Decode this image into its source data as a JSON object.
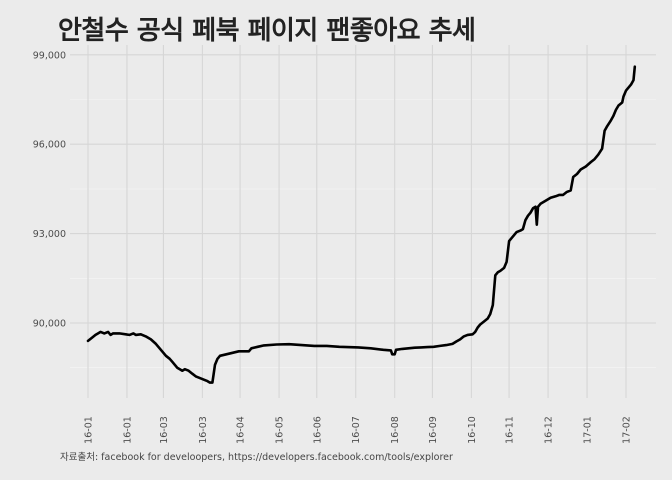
{
  "title": "안철수 공식 페북 페이지 팬좋아요 추세",
  "caption": "자료출처: facebook for develoopers, https://developers.facebook.com/tools/explorer",
  "chart_data": {
    "type": "line",
    "title": "안철수 공식 페북 페이지 팬좋아요 추세",
    "xlabel": "",
    "ylabel": "",
    "grid": true,
    "ylim": [
      87450,
      99450
    ],
    "yticks": [
      90000,
      93000,
      96000,
      99000
    ],
    "ytick_labels": [
      "90,000",
      "93,000",
      "96,000",
      "99,000"
    ],
    "x_range_days": [
      0,
      415
    ],
    "xticks": [
      {
        "label": "16-01",
        "day": 0
      },
      {
        "label": "16-01",
        "day": 31
      },
      {
        "label": "16-03",
        "day": 60
      },
      {
        "label": "16-03",
        "day": 91
      },
      {
        "label": "16-04",
        "day": 121
      },
      {
        "label": "16-05",
        "day": 152
      },
      {
        "label": "16-06",
        "day": 182
      },
      {
        "label": "16-07",
        "day": 213
      },
      {
        "label": "16-08",
        "day": 244
      },
      {
        "label": "16-09",
        "day": 274
      },
      {
        "label": "16-10",
        "day": 305
      },
      {
        "label": "16-11",
        "day": 335
      },
      {
        "label": "16-12",
        "day": 366
      },
      {
        "label": "17-01",
        "day": 397
      },
      {
        "label": "17-02",
        "day": 428
      }
    ],
    "series": [
      {
        "color": "#000000",
        "points": [
          [
            0,
            89400
          ],
          [
            3,
            89500
          ],
          [
            6,
            89600
          ],
          [
            8,
            89650
          ],
          [
            10,
            89700
          ],
          [
            13,
            89650
          ],
          [
            16,
            89700
          ],
          [
            18,
            89600
          ],
          [
            20,
            89650
          ],
          [
            25,
            89650
          ],
          [
            30,
            89620
          ],
          [
            33,
            89600
          ],
          [
            36,
            89650
          ],
          [
            38,
            89600
          ],
          [
            42,
            89620
          ],
          [
            46,
            89550
          ],
          [
            50,
            89450
          ],
          [
            54,
            89300
          ],
          [
            57,
            89150
          ],
          [
            60,
            89000
          ],
          [
            62,
            88900
          ],
          [
            65,
            88800
          ],
          [
            67,
            88700
          ],
          [
            69,
            88600
          ],
          [
            71,
            88500
          ],
          [
            73,
            88450
          ],
          [
            75,
            88400
          ],
          [
            77,
            88450
          ],
          [
            80,
            88400
          ],
          [
            83,
            88300
          ],
          [
            86,
            88200
          ],
          [
            89,
            88150
          ],
          [
            92,
            88100
          ],
          [
            95,
            88050
          ],
          [
            97,
            88000
          ],
          [
            99,
            88000
          ],
          [
            100,
            88300
          ],
          [
            101,
            88600
          ],
          [
            103,
            88800
          ],
          [
            105,
            88900
          ],
          [
            110,
            88950
          ],
          [
            115,
            89000
          ],
          [
            120,
            89050
          ],
          [
            128,
            89050
          ],
          [
            130,
            89150
          ],
          [
            135,
            89200
          ],
          [
            140,
            89250
          ],
          [
            150,
            89280
          ],
          [
            160,
            89290
          ],
          [
            170,
            89260
          ],
          [
            180,
            89230
          ],
          [
            190,
            89230
          ],
          [
            200,
            89200
          ],
          [
            215,
            89180
          ],
          [
            225,
            89150
          ],
          [
            235,
            89100
          ],
          [
            241,
            89080
          ],
          [
            242,
            88950
          ],
          [
            244,
            88950
          ],
          [
            245,
            89100
          ],
          [
            250,
            89130
          ],
          [
            255,
            89150
          ],
          [
            260,
            89170
          ],
          [
            265,
            89180
          ],
          [
            270,
            89190
          ],
          [
            275,
            89200
          ],
          [
            280,
            89230
          ],
          [
            285,
            89260
          ],
          [
            290,
            89300
          ],
          [
            293,
            89380
          ],
          [
            296,
            89450
          ],
          [
            299,
            89550
          ],
          [
            302,
            89600
          ],
          [
            306,
            89620
          ],
          [
            308,
            89700
          ],
          [
            310,
            89850
          ],
          [
            312,
            89950
          ],
          [
            315,
            90050
          ],
          [
            318,
            90150
          ],
          [
            320,
            90300
          ],
          [
            322,
            90600
          ],
          [
            324,
            91600
          ],
          [
            326,
            91700
          ],
          [
            328,
            91750
          ],
          [
            331,
            91850
          ],
          [
            333,
            92050
          ],
          [
            335,
            92750
          ],
          [
            337,
            92850
          ],
          [
            339,
            92950
          ],
          [
            341,
            93050
          ],
          [
            344,
            93100
          ],
          [
            346,
            93150
          ],
          [
            348,
            93450
          ],
          [
            350,
            93600
          ],
          [
            352,
            93700
          ],
          [
            354,
            93850
          ],
          [
            356,
            93900
          ],
          [
            357,
            93300
          ],
          [
            358,
            93900
          ],
          [
            360,
            94000
          ],
          [
            364,
            94100
          ],
          [
            368,
            94200
          ],
          [
            372,
            94250
          ],
          [
            375,
            94300
          ],
          [
            378,
            94300
          ],
          [
            381,
            94400
          ],
          [
            384,
            94450
          ],
          [
            386,
            94900
          ],
          [
            389,
            95000
          ],
          [
            392,
            95150
          ],
          [
            396,
            95250
          ],
          [
            400,
            95400
          ],
          [
            403,
            95500
          ],
          [
            406,
            95650
          ],
          [
            409,
            95850
          ],
          [
            411,
            96450
          ],
          [
            413,
            96600
          ],
          [
            416,
            96800
          ],
          [
            418,
            96950
          ],
          [
            420,
            97150
          ],
          [
            422,
            97300
          ],
          [
            425,
            97400
          ],
          [
            426,
            97600
          ],
          [
            428,
            97800
          ],
          [
            430,
            97900
          ],
          [
            432,
            98000
          ],
          [
            434,
            98150
          ],
          [
            435,
            98600
          ]
        ]
      }
    ]
  }
}
